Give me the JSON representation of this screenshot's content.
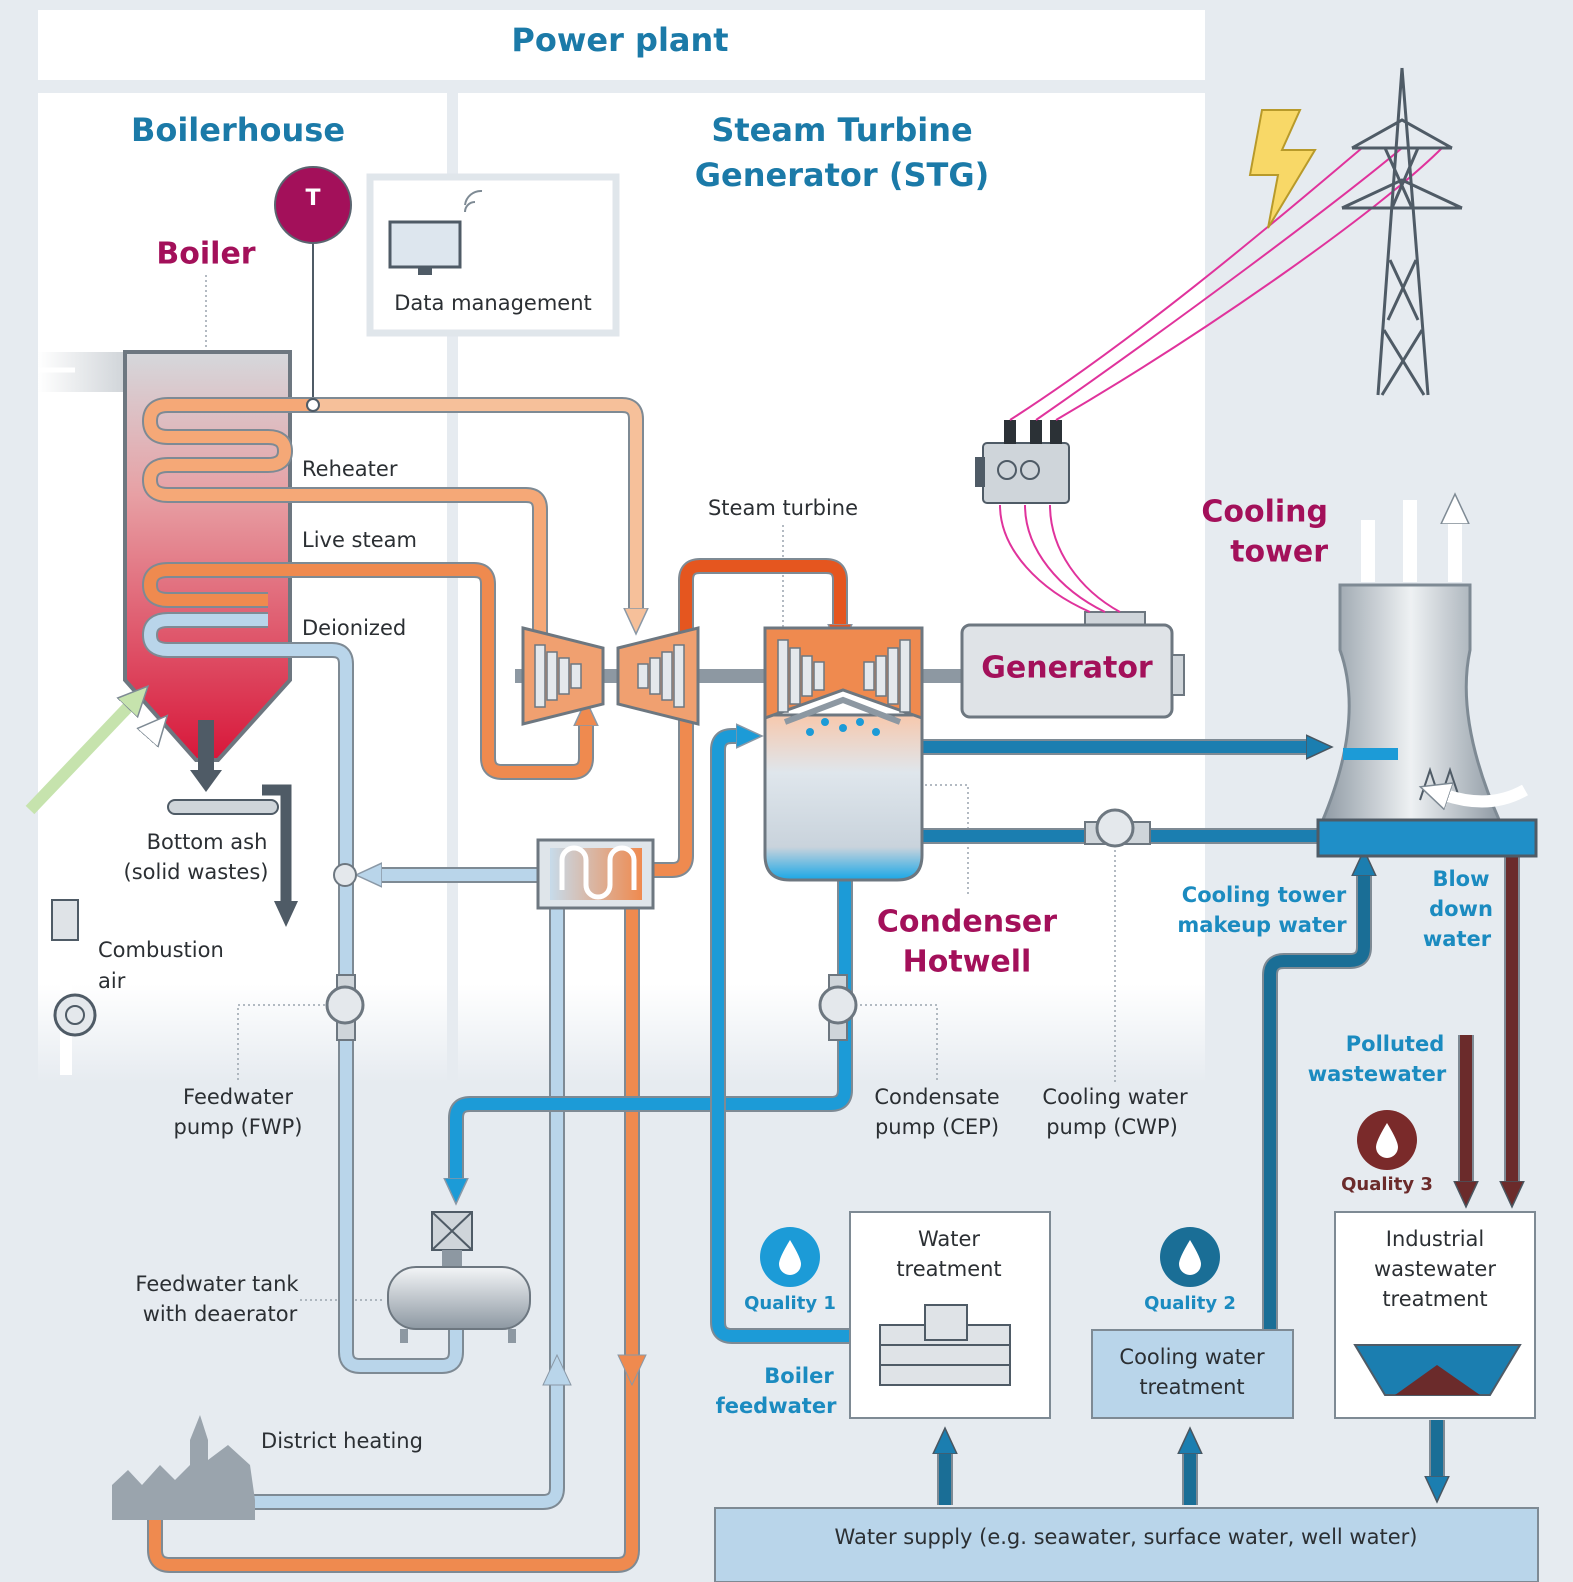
{
  "header": {
    "title": "Power plant"
  },
  "sections": {
    "boilerhouse": "Boilerhouse",
    "stg": [
      "Steam Turbine",
      "Generator (STG)"
    ]
  },
  "instrument": "T",
  "components": {
    "boiler": "Boiler",
    "data_management": "Data management",
    "steam_turbine": "Steam turbine",
    "generator": "Generator",
    "cooling_tower": [
      "Cooling",
      "tower"
    ],
    "condenser": [
      "Condenser",
      "Hotwell"
    ]
  },
  "streams": {
    "reheater": "Reheater",
    "live_steam": "Live steam",
    "deionized": "Deionized",
    "bottom_ash": [
      "Bottom ash",
      "(solid wastes)"
    ],
    "combustion_air": [
      "Combustion",
      "air"
    ],
    "makeup": [
      "Cooling tower",
      "makeup water"
    ],
    "blowdown": [
      "Blow",
      "down",
      "water"
    ],
    "polluted": [
      "Polluted",
      "wastewater"
    ],
    "boiler_feedwater": [
      "Boiler",
      "feedwater"
    ],
    "district_heating": "District heating"
  },
  "equipment": {
    "fwp": [
      "Feedwater",
      "pump (FWP)"
    ],
    "cep": [
      "Condensate",
      "pump (CEP)"
    ],
    "cwp": [
      "Cooling water",
      "pump (CWP)"
    ],
    "tank": [
      "Feedwater tank",
      "with deaerator"
    ]
  },
  "qualities": [
    "Quality 1",
    "Quality 2",
    "Quality 3"
  ],
  "treatment": {
    "water": [
      "Water",
      "treatment"
    ],
    "cooling": [
      "Cooling water",
      "treatment"
    ],
    "industrial": [
      "Industrial",
      "wastewater",
      "treatment"
    ],
    "supply": "Water supply (e.g. seawater, surface water, well water)"
  }
}
